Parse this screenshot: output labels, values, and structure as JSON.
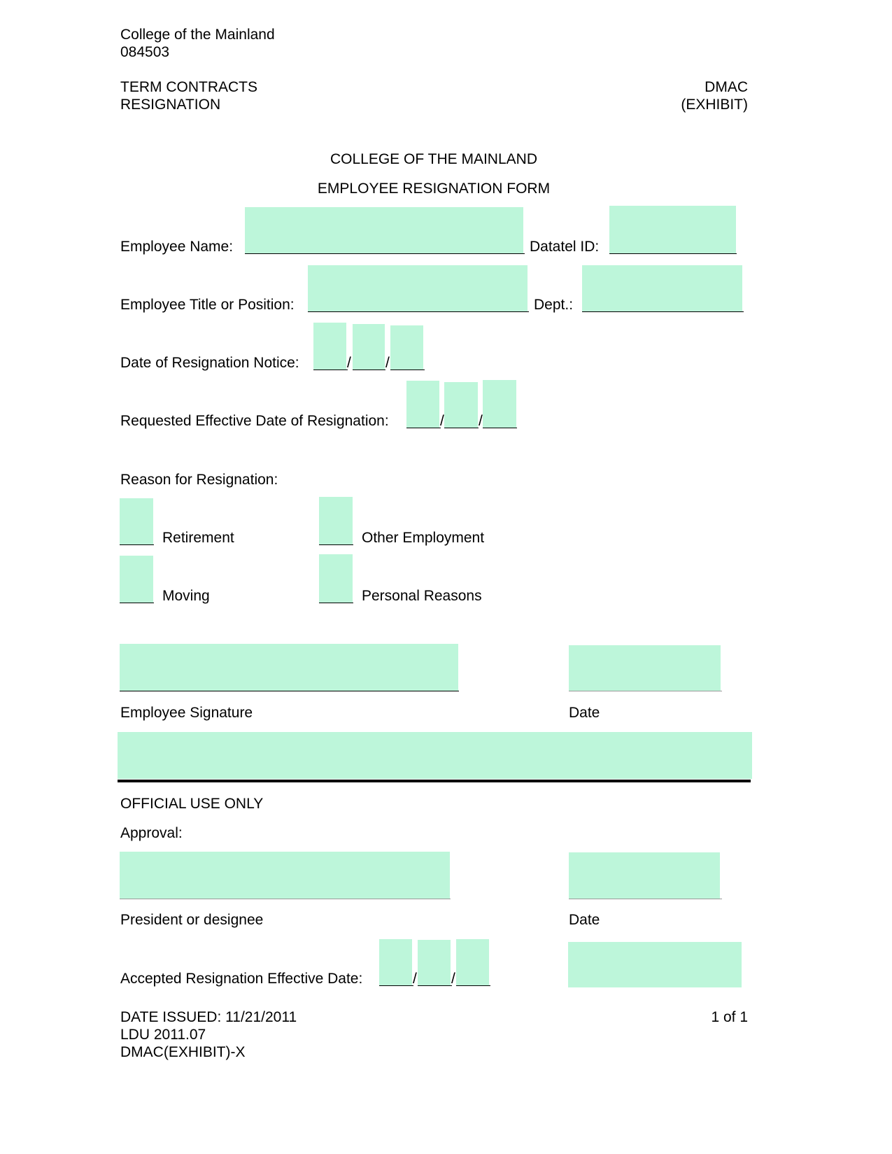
{
  "header": {
    "org_line1": "College of the Mainland",
    "org_line2": "084503",
    "section_line1": "TERM CONTRACTS",
    "section_line2": "RESIGNATION",
    "code_line1": "DMAC",
    "code_line2": "(EXHIBIT)"
  },
  "title": {
    "college": "COLLEGE OF THE MAINLAND",
    "form": "EMPLOYEE RESIGNATION FORM"
  },
  "fields": {
    "employee_name_label": "Employee Name:",
    "datatel_id_label": "Datatel ID:",
    "title_position_label": "Employee Title or Position:",
    "dept_label": "Dept.:",
    "notice_date_label": "Date of Resignation Notice:",
    "requested_date_label": "Requested Effective Date of Resignation:",
    "date_separator": "/"
  },
  "reasons": {
    "label": "Reason for Resignation:",
    "retirement": "Retirement",
    "other_employment": "Other Employment",
    "moving": "Moving",
    "personal": "Personal Reasons"
  },
  "signature": {
    "employee_signature_label": "Employee Signature",
    "date_label": "Date"
  },
  "official": {
    "heading": "OFFICIAL USE ONLY",
    "approval_label": "Approval:",
    "president_label": "President or designee",
    "date_label": "Date",
    "accepted_date_label": "Accepted Resignation Effective Date:"
  },
  "footer": {
    "date_issued": "DATE ISSUED: 11/21/2011",
    "ldu": "LDU 2011.07",
    "code": "DMAC(EXHIBIT)-X",
    "page": "1 of 1"
  },
  "colors": {
    "field_fill": "#bdf6da"
  }
}
